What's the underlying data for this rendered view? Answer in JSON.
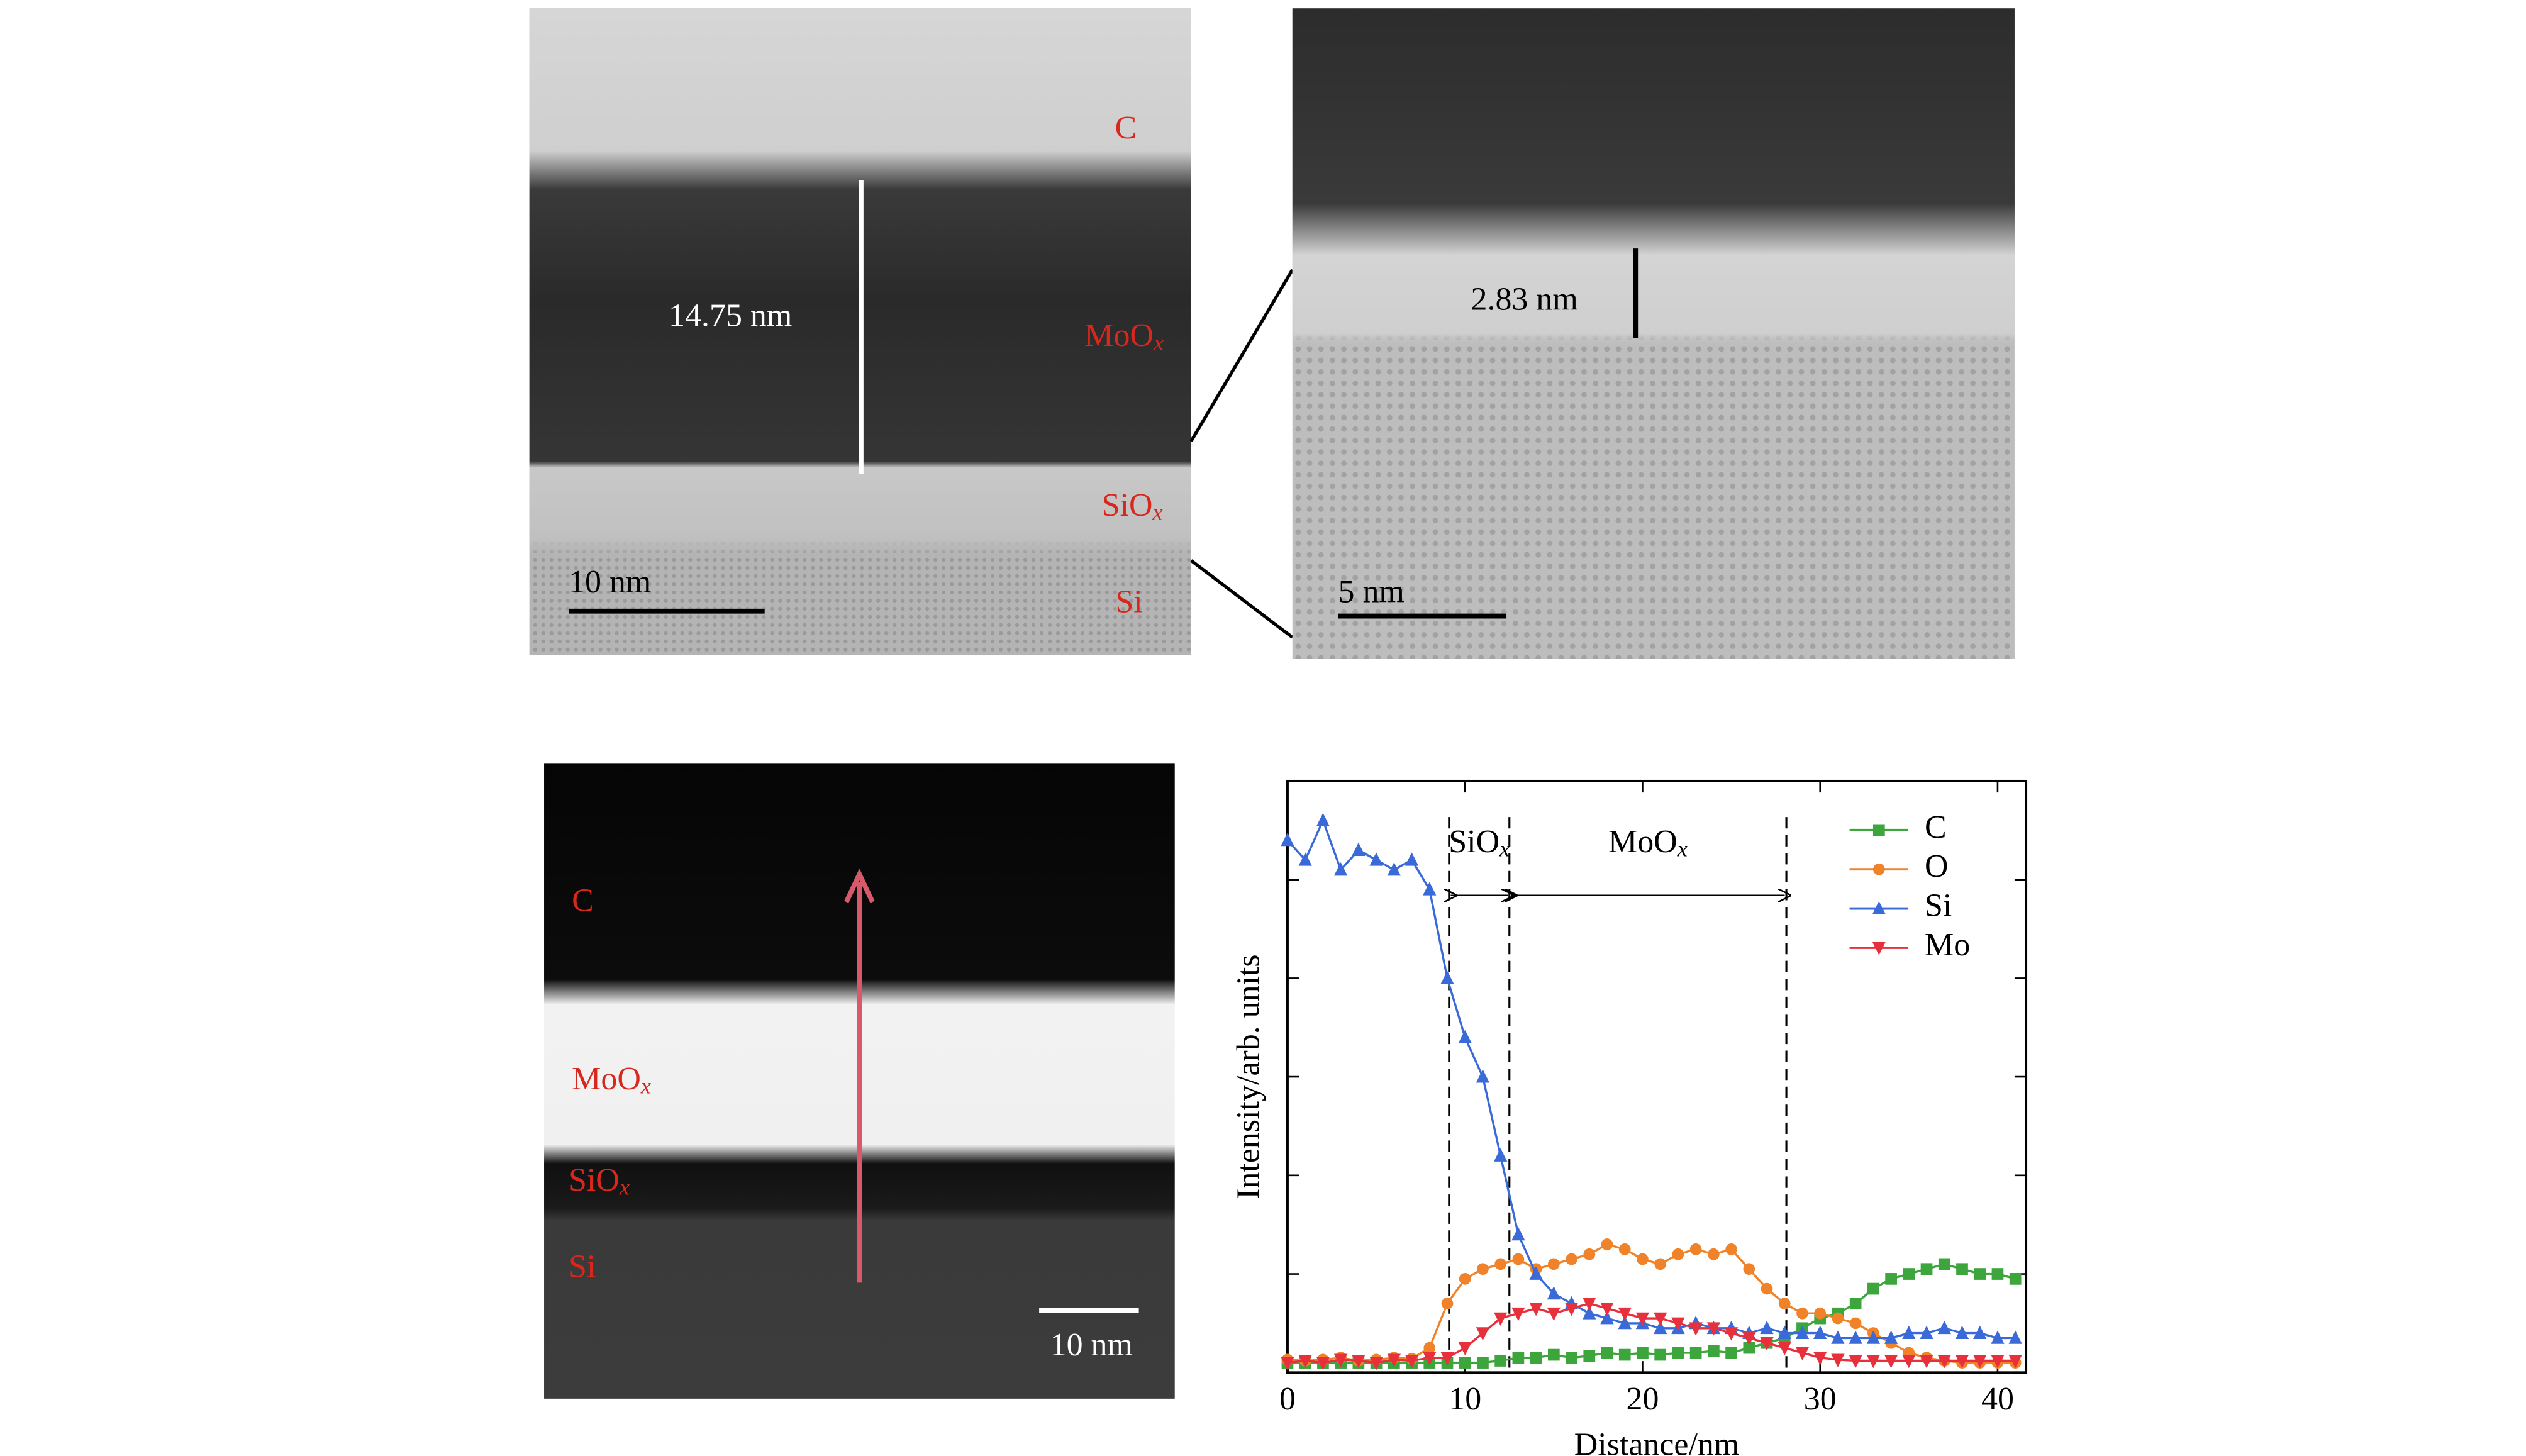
{
  "images": {
    "top_left": {
      "labels": [
        "C",
        {
          "text": "MoO",
          "sub": "x"
        },
        {
          "text": "SiO",
          "sub": "x"
        },
        "Si"
      ],
      "thickness": "14.75 nm",
      "scale": "10 nm"
    },
    "top_right": {
      "thickness": "2.83 nm",
      "scale": "5 nm"
    },
    "bottom_left": {
      "labels": [
        "C",
        {
          "text": "MoO",
          "sub": "x"
        },
        {
          "text": "SiO",
          "sub": "x"
        },
        "Si"
      ],
      "scale": "10 nm"
    }
  },
  "chart_data": {
    "type": "line",
    "xlabel": "Distance/nm",
    "ylabel": "Intensity/arb. units",
    "x": [
      0,
      1,
      2,
      3,
      4,
      5,
      6,
      7,
      8,
      9,
      10,
      11,
      12,
      13,
      14,
      15,
      16,
      17,
      18,
      19,
      20,
      21,
      22,
      23,
      24,
      25,
      26,
      27,
      28,
      29,
      30,
      31,
      32,
      33,
      34,
      35,
      36,
      37,
      38,
      39,
      40,
      41
    ],
    "series": [
      {
        "name": "C",
        "color": "#3ca53c",
        "marker": "square",
        "values": [
          0.1,
          0.1,
          0.1,
          0.1,
          0.1,
          0.1,
          0.1,
          0.1,
          0.1,
          0.1,
          0.1,
          0.1,
          0.12,
          0.15,
          0.15,
          0.18,
          0.15,
          0.17,
          0.2,
          0.18,
          0.2,
          0.18,
          0.2,
          0.2,
          0.22,
          0.2,
          0.25,
          0.3,
          0.35,
          0.45,
          0.55,
          0.6,
          0.7,
          0.85,
          0.95,
          1.0,
          1.05,
          1.1,
          1.05,
          1.0,
          1.0,
          0.95
        ]
      },
      {
        "name": "O",
        "color": "#f0822a",
        "marker": "circle",
        "values": [
          0.13,
          0.12,
          0.13,
          0.15,
          0.12,
          0.13,
          0.15,
          0.14,
          0.25,
          0.7,
          0.95,
          1.05,
          1.1,
          1.15,
          1.05,
          1.1,
          1.15,
          1.2,
          1.3,
          1.25,
          1.15,
          1.1,
          1.2,
          1.25,
          1.2,
          1.25,
          1.05,
          0.85,
          0.7,
          0.6,
          0.6,
          0.55,
          0.5,
          0.4,
          0.3,
          0.2,
          0.15,
          0.12,
          0.1,
          0.1,
          0.1,
          0.1
        ]
      },
      {
        "name": "Si",
        "color": "#3a6ad8",
        "marker": "triangle",
        "values": [
          5.4,
          5.2,
          5.6,
          5.1,
          5.3,
          5.2,
          5.1,
          5.2,
          4.9,
          4.0,
          3.4,
          3.0,
          2.2,
          1.4,
          1.0,
          0.8,
          0.7,
          0.6,
          0.55,
          0.5,
          0.5,
          0.45,
          0.45,
          0.5,
          0.45,
          0.45,
          0.4,
          0.45,
          0.4,
          0.4,
          0.4,
          0.35,
          0.35,
          0.35,
          0.35,
          0.4,
          0.4,
          0.45,
          0.4,
          0.4,
          0.35,
          0.35
        ]
      },
      {
        "name": "Mo",
        "color": "#e8303c",
        "marker": "triangle-down",
        "values": [
          0.1,
          0.12,
          0.1,
          0.13,
          0.12,
          0.1,
          0.13,
          0.12,
          0.15,
          0.15,
          0.25,
          0.4,
          0.55,
          0.6,
          0.65,
          0.6,
          0.65,
          0.7,
          0.65,
          0.6,
          0.55,
          0.55,
          0.5,
          0.45,
          0.45,
          0.4,
          0.35,
          0.3,
          0.25,
          0.2,
          0.15,
          0.13,
          0.12,
          0.12,
          0.12,
          0.12,
          0.12,
          0.12,
          0.12,
          0.12,
          0.12,
          0.12
        ]
      }
    ],
    "xlim": [
      0,
      41.6
    ],
    "xticks": [
      0,
      10,
      20,
      30,
      40
    ],
    "ylim": [
      0,
      6
    ],
    "yticks": [
      1,
      2,
      3,
      4,
      5
    ],
    "boundaries": [
      9.1,
      12.5,
      28.1
    ],
    "region_labels": [
      {
        "text": "SiO",
        "sub": "x"
      },
      {
        "text": "MoO",
        "sub": "x"
      }
    ],
    "legend": "upper right"
  }
}
